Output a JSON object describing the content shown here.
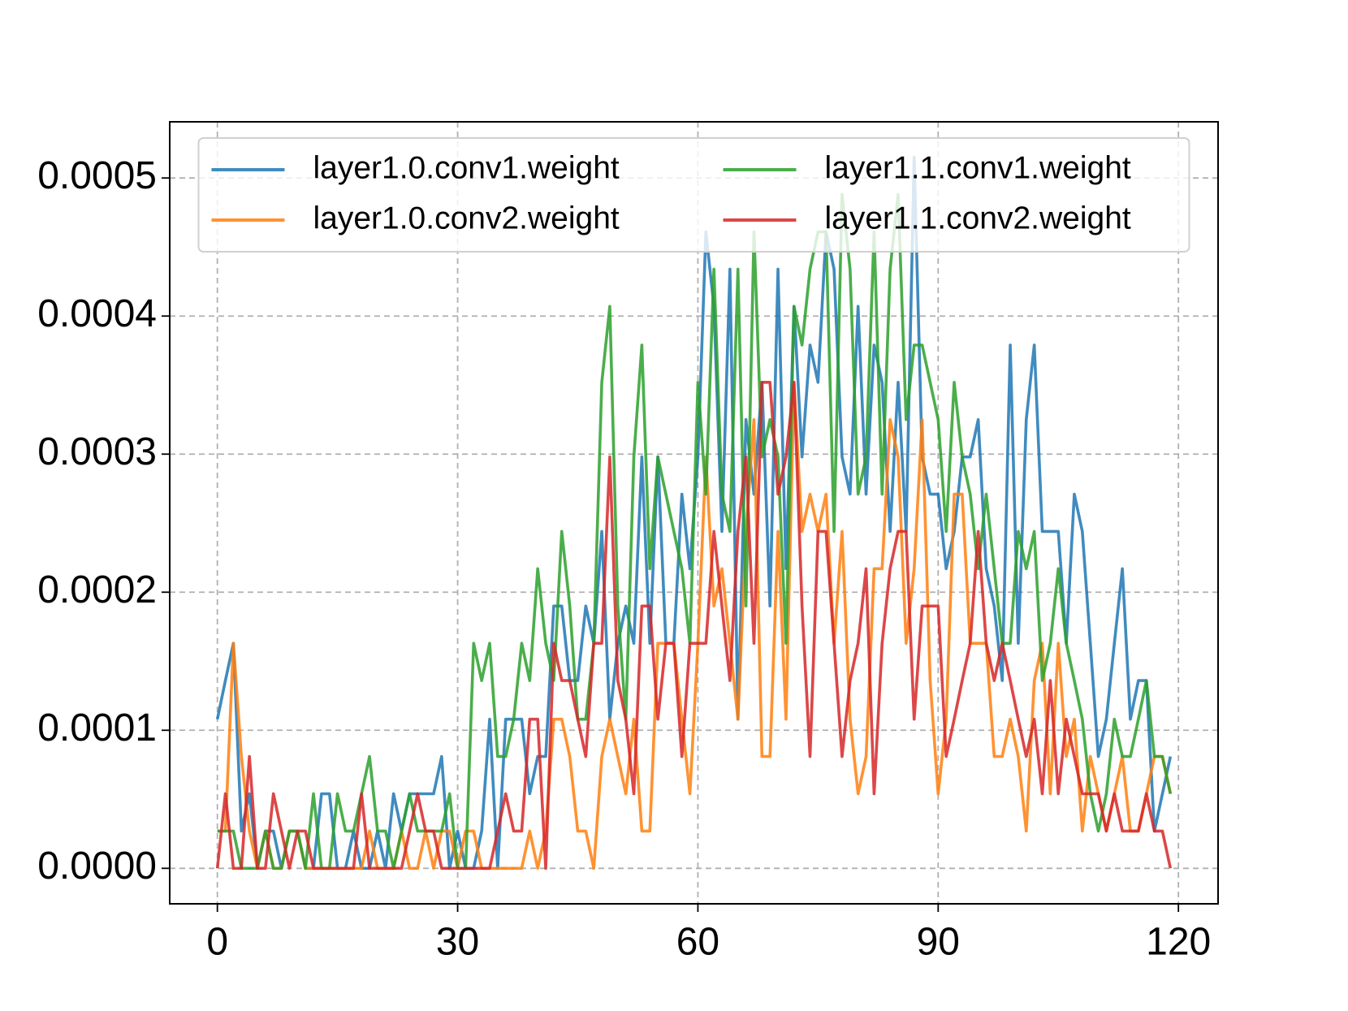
{
  "chart_data": {
    "type": "line",
    "x": [
      0,
      1,
      2,
      3,
      4,
      5,
      6,
      7,
      8,
      9,
      10,
      11,
      12,
      13,
      14,
      15,
      16,
      17,
      18,
      19,
      20,
      21,
      22,
      23,
      24,
      25,
      26,
      27,
      28,
      29,
      30,
      31,
      32,
      33,
      34,
      35,
      36,
      37,
      38,
      39,
      40,
      41,
      42,
      43,
      44,
      45,
      46,
      47,
      48,
      49,
      50,
      51,
      52,
      53,
      54,
      55,
      56,
      57,
      58,
      59,
      60,
      61,
      62,
      63,
      64,
      65,
      66,
      67,
      68,
      69,
      70,
      71,
      72,
      73,
      74,
      75,
      76,
      77,
      78,
      79,
      80,
      81,
      82,
      83,
      84,
      85,
      86,
      87,
      88,
      89,
      90,
      91,
      92,
      93,
      94,
      95,
      96,
      97,
      98,
      99,
      100,
      101,
      102,
      103,
      104,
      105,
      106,
      107,
      108,
      109,
      110,
      111,
      112,
      113,
      114,
      115,
      116,
      117,
      118,
      119
    ],
    "series": [
      {
        "name": "layer1.0.conv1.weight",
        "color": "#1f77b4",
        "values": [
          0.000108,
          0.000136,
          0.000163,
          2.7e-05,
          5.4e-05,
          0,
          2.7e-05,
          2.7e-05,
          0,
          2.7e-05,
          2.7e-05,
          0,
          0,
          5.4e-05,
          5.4e-05,
          0,
          0,
          2.7e-05,
          0,
          0,
          2.7e-05,
          0,
          5.4e-05,
          2.7e-05,
          5.4e-05,
          5.4e-05,
          5.4e-05,
          5.4e-05,
          8.1e-05,
          0,
          2.7e-05,
          0,
          0,
          2.7e-05,
          0.000108,
          0,
          0.000108,
          0.000108,
          0.000108,
          5.4e-05,
          8.1e-05,
          8.1e-05,
          0.00019,
          0.00019,
          0.000136,
          0.000136,
          0.00019,
          0.000163,
          0.000244,
          0.000108,
          0.000163,
          0.00019,
          0.000163,
          0.000298,
          0.000163,
          0.000298,
          0.000163,
          0.000163,
          0.000271,
          0.000217,
          0.000298,
          0.000461,
          0.000407,
          0.000244,
          0.000434,
          0.000108,
          0.000325,
          0.000271,
          0.000352,
          0.00019,
          0.000434,
          0.000217,
          0.000407,
          0.000298,
          0.000379,
          0.000352,
          0.000461,
          0.000434,
          0.000298,
          0.000271,
          0.000407,
          0.000271,
          0.000379,
          0.000352,
          0.000244,
          0.000352,
          0.000244,
          0.000515,
          0.000298,
          0.000271,
          0.000271,
          0.000217,
          0.000244,
          0.000298,
          0.000298,
          0.000325,
          0.000217,
          0.00019,
          0.000136,
          0.000379,
          0.000163,
          0.000325,
          0.000379,
          0.000244,
          0.000244,
          0.000244,
          0.000163,
          0.000271,
          0.000244,
          0.000163,
          8.1e-05,
          0.000108,
          0.000163,
          0.000217,
          0.000108,
          0.000136,
          0.000136,
          2.7e-05,
          5.4e-05,
          8.1e-05
        ]
      },
      {
        "name": "layer1.0.conv2.weight",
        "color": "#ff7f0e",
        "values": [
          2.7e-05,
          2.7e-05,
          0.000163,
          8.1e-05,
          2.7e-05,
          0,
          2.7e-05,
          0,
          0,
          2.7e-05,
          2.7e-05,
          0,
          0,
          0,
          0,
          0,
          0,
          0,
          0,
          2.7e-05,
          0,
          0,
          0,
          2.7e-05,
          0,
          0,
          2.7e-05,
          0,
          2.7e-05,
          2.7e-05,
          0,
          2.7e-05,
          2.7e-05,
          0,
          0,
          0,
          0,
          0,
          0,
          2.7e-05,
          0,
          2.7e-05,
          0.000108,
          0.000108,
          8.1e-05,
          2.7e-05,
          2.7e-05,
          0,
          8.1e-05,
          0.000108,
          8.1e-05,
          5.4e-05,
          0.000108,
          2.7e-05,
          2.7e-05,
          0.000163,
          0.000163,
          0.000163,
          0.000108,
          5.4e-05,
          0.000163,
          0.000298,
          0.00019,
          0.000217,
          0.000163,
          0.000108,
          0.000244,
          0.000325,
          8.1e-05,
          8.1e-05,
          0.000244,
          0.000108,
          0.000352,
          0.000244,
          0.000271,
          0.000244,
          0.000271,
          0.000163,
          0.000244,
          0.000108,
          5.4e-05,
          8.1e-05,
          0.000217,
          0.000217,
          0.000325,
          0.000298,
          0.000163,
          0.000217,
          0.000325,
          0.000136,
          5.4e-05,
          0.000108,
          0.000271,
          0.000271,
          0.000163,
          0.000163,
          0.000163,
          8.1e-05,
          8.1e-05,
          0.000108,
          8.1e-05,
          2.7e-05,
          0.000136,
          0.000163,
          5.4e-05,
          0.000163,
          8.1e-05,
          0.000108,
          2.7e-05,
          8.1e-05,
          5.4e-05,
          2.7e-05,
          5.4e-05,
          8.1e-05,
          2.7e-05,
          2.7e-05,
          5.4e-05,
          8.1e-05,
          8.1e-05,
          5.4e-05
        ]
      },
      {
        "name": "layer1.1.conv1.weight",
        "color": "#2ca02c",
        "values": [
          2.7e-05,
          2.7e-05,
          2.7e-05,
          0,
          0,
          0,
          2.7e-05,
          0,
          0,
          2.7e-05,
          2.7e-05,
          0,
          5.4e-05,
          0,
          0,
          5.4e-05,
          2.7e-05,
          2.7e-05,
          5.4e-05,
          8.1e-05,
          2.7e-05,
          2.7e-05,
          0,
          2.7e-05,
          5.4e-05,
          2.7e-05,
          2.7e-05,
          2.7e-05,
          2.7e-05,
          5.4e-05,
          0,
          0,
          0.000163,
          0.000136,
          0.000163,
          8.1e-05,
          8.1e-05,
          0.000108,
          0.000163,
          0.000136,
          0.000217,
          0.000163,
          0.000136,
          0.000244,
          0.00019,
          0.000108,
          0.000108,
          0.000163,
          0.000352,
          0.000407,
          0.00019,
          0.000108,
          0.000298,
          0.000379,
          0.000217,
          0.000298,
          0.000271,
          0.000244,
          0.000217,
          0.000163,
          0.000352,
          0.000271,
          0.000434,
          0.000271,
          0.000244,
          0.000434,
          0.00019,
          0.000461,
          0.000298,
          0.000325,
          0.000298,
          0.000163,
          0.000407,
          0.000379,
          0.000434,
          0.000461,
          0.000461,
          0.000244,
          0.000488,
          0.000434,
          0.000271,
          0.000298,
          0.000461,
          0.000271,
          0.000434,
          0.000488,
          0.000325,
          0.000379,
          0.000379,
          0.000352,
          0.000325,
          0.000244,
          0.000352,
          0.000298,
          0.000271,
          0.000217,
          0.000271,
          0.000217,
          0.000163,
          0.000163,
          0.000244,
          0.000217,
          0.000244,
          0.000136,
          0.000163,
          0.000217,
          0.000163,
          0.000136,
          0.000108,
          5.4e-05,
          2.7e-05,
          5.4e-05,
          0.000108,
          8.1e-05,
          8.1e-05,
          0.000108,
          0.000136,
          8.1e-05,
          8.1e-05,
          5.4e-05
        ]
      },
      {
        "name": "layer1.1.conv2.weight",
        "color": "#d62728",
        "values": [
          0,
          5.4e-05,
          0,
          0,
          8.1e-05,
          0,
          0,
          5.4e-05,
          2.7e-05,
          0,
          2.7e-05,
          2.7e-05,
          0,
          0,
          0,
          0,
          0,
          0,
          5.4e-05,
          0,
          0,
          0,
          0,
          0,
          2.7e-05,
          5.4e-05,
          2.7e-05,
          2.7e-05,
          0,
          0,
          0,
          0,
          0,
          0,
          0,
          2.7e-05,
          5.4e-05,
          2.7e-05,
          2.7e-05,
          0.000108,
          0.000108,
          0,
          0.000163,
          0.000136,
          0.000136,
          0.000108,
          8.1e-05,
          0.000163,
          0.000163,
          0.000298,
          0.000136,
          0.000108,
          5.4e-05,
          0.00019,
          0.00019,
          0.000108,
          0.000163,
          0.000163,
          8.1e-05,
          0.000163,
          0.000163,
          0.000163,
          0.000244,
          0.00019,
          0.000136,
          0.000244,
          0.000298,
          0.000163,
          0.000352,
          0.000352,
          0.000271,
          0.000298,
          0.000352,
          0.00019,
          8.1e-05,
          0.000244,
          0.000244,
          0.000163,
          8.1e-05,
          0.000136,
          0.000163,
          0.000217,
          5.4e-05,
          0.000163,
          0.000217,
          0.000244,
          0.000244,
          0.000108,
          0.00019,
          0.00019,
          0.00019,
          8.1e-05,
          0.000108,
          0.000136,
          0.000163,
          0.000244,
          0.000163,
          0.000136,
          0.000163,
          0.000136,
          0.000108,
          8.1e-05,
          0.000108,
          5.4e-05,
          0.000136,
          5.4e-05,
          0.000108,
          8.1e-05,
          5.4e-05,
          5.4e-05,
          5.4e-05,
          2.7e-05,
          5.4e-05,
          2.7e-05,
          2.7e-05,
          2.7e-05,
          5.4e-05,
          2.7e-05,
          2.7e-05,
          0
        ]
      }
    ],
    "xlim": [
      -5.95,
      124.95
    ],
    "ylim": [
      -2.57e-05,
      0.0005407
    ],
    "xticks": [
      0,
      30,
      60,
      90,
      120
    ],
    "yticks": [
      {
        "value": 0,
        "label": "0.0000"
      },
      {
        "value": 0.0001,
        "label": "0.0001"
      },
      {
        "value": 0.0002,
        "label": "0.0002"
      },
      {
        "value": 0.0003,
        "label": "0.0003"
      },
      {
        "value": 0.0004,
        "label": "0.0004"
      },
      {
        "value": 0.0005,
        "label": "0.0005"
      }
    ],
    "grid": true,
    "legend_loc": "upper center",
    "legend_ncol": 2
  }
}
